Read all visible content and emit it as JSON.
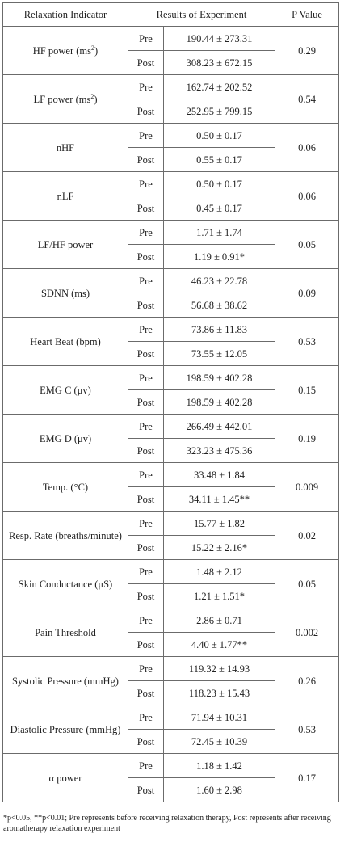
{
  "table": {
    "headers": {
      "indicator": "Relaxation Indicator",
      "results": "Results of Experiment",
      "pvalue": "P Value"
    },
    "rows": [
      {
        "indicator": "HF power (ms²)",
        "pre_label": "Pre",
        "pre": "190.44 ± 273.31",
        "post_label": "Post",
        "post": "308.23 ± 672.15",
        "p": "0.29"
      },
      {
        "indicator": "LF power (ms²)",
        "pre_label": "Pre",
        "pre": "162.74 ± 202.52",
        "post_label": "Post",
        "post": "252.95 ± 799.15",
        "p": "0.54"
      },
      {
        "indicator": "nHF",
        "pre_label": "Pre",
        "pre": "0.50 ± 0.17",
        "post_label": "Post",
        "post": "0.55 ± 0.17",
        "p": "0.06"
      },
      {
        "indicator": "nLF",
        "pre_label": "Pre",
        "pre": "0.50 ± 0.17",
        "post_label": "Post",
        "post": "0.45 ± 0.17",
        "p": "0.06"
      },
      {
        "indicator": "LF/HF power",
        "pre_label": "Pre",
        "pre": "1.71 ± 1.74",
        "post_label": "Post",
        "post": "1.19 ± 0.91*",
        "p": "0.05"
      },
      {
        "indicator": "SDNN (ms)",
        "pre_label": "Pre",
        "pre": "46.23 ± 22.78",
        "post_label": "Post",
        "post": "56.68 ± 38.62",
        "p": "0.09"
      },
      {
        "indicator": "Heart Beat (bpm)",
        "pre_label": "Pre",
        "pre": "73.86 ± 11.83",
        "post_label": "Post",
        "post": "73.55 ± 12.05",
        "p": "0.53"
      },
      {
        "indicator": "EMG C (μv)",
        "pre_label": "Pre",
        "pre": "198.59 ± 402.28",
        "post_label": "Post",
        "post": "198.59 ± 402.28",
        "p": "0.15"
      },
      {
        "indicator": "EMG D (μv)",
        "pre_label": "Pre",
        "pre": "266.49 ± 442.01",
        "post_label": "Post",
        "post": "323.23 ± 475.36",
        "p": "0.19"
      },
      {
        "indicator": "Temp. (°C)",
        "pre_label": "Pre",
        "pre": "33.48 ± 1.84",
        "post_label": "Post",
        "post": "34.11 ± 1.45**",
        "p": "0.009"
      },
      {
        "indicator": "Resp. Rate (breaths/minute)",
        "pre_label": "Pre",
        "pre": "15.77 ± 1.82",
        "post_label": "Post",
        "post": "15.22 ± 2.16*",
        "p": "0.02"
      },
      {
        "indicator": "Skin Conductance (μS)",
        "pre_label": "Pre",
        "pre": "1.48 ± 2.12",
        "post_label": "Post",
        "post": "1.21 ± 1.51*",
        "p": "0.05"
      },
      {
        "indicator": "Pain Threshold",
        "pre_label": "Pre",
        "pre": "2.86 ± 0.71",
        "post_label": "Post",
        "post": "4.40 ± 1.77**",
        "p": "0.002"
      },
      {
        "indicator": "Systolic Pressure (mmHg)",
        "pre_label": "Pre",
        "pre": "119.32 ± 14.93",
        "post_label": "Post",
        "post": "118.23 ± 15.43",
        "p": "0.26"
      },
      {
        "indicator": "Diastolic Pressure (mmHg)",
        "pre_label": "Pre",
        "pre": "71.94 ± 10.31",
        "post_label": "Post",
        "post": "72.45 ± 10.39",
        "p": "0.53"
      },
      {
        "indicator": "α power",
        "pre_label": "Pre",
        "pre": "1.18 ± 1.42",
        "post_label": "Post",
        "post": "1.60 ± 2.98",
        "p": "0.17"
      }
    ]
  },
  "footnote": "*p<0.05, **p<0.01; Pre represents before receiving relaxation therapy, Post represents after receiving aromatherapy relaxation experiment"
}
